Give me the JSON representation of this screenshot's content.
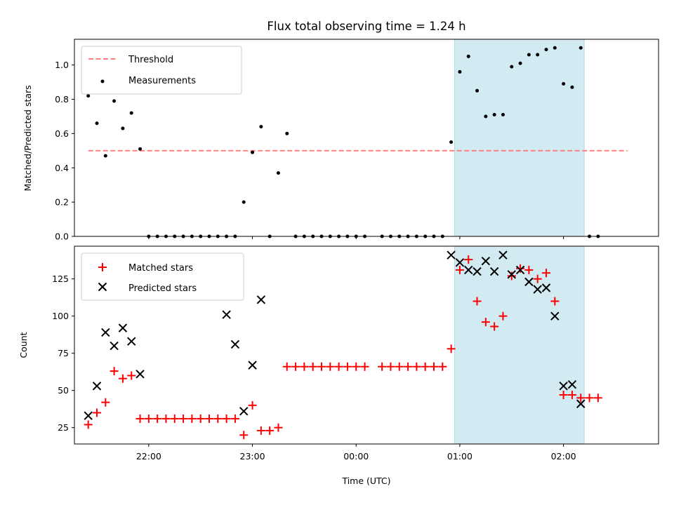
{
  "figure_title": "Flux total observing time = 1.24 h",
  "x_axis_label": "Time (UTC)",
  "x_tick_labels": [
    "22:00",
    "23:00",
    "00:00",
    "01:00",
    "02:00"
  ],
  "chart_data": [
    {
      "type": "scatter",
      "ylabel": "Matched/Predicted stars",
      "ylim": [
        0,
        1.15
      ],
      "xlim": [
        "21:17",
        "02:55"
      ],
      "yticks": [
        "0.0",
        "0.2",
        "0.4",
        "0.6",
        "0.8",
        "1.0"
      ],
      "legend_position": "upper-left",
      "grid": false,
      "highlight_span": {
        "start": "00:57",
        "end": "02:12",
        "color": "#add8e6"
      },
      "threshold": {
        "name": "Threshold",
        "value": 0.5,
        "x_start": "21:25",
        "x_end": "02:37",
        "style": "dashed",
        "color": "#ff8080"
      },
      "series": [
        {
          "name": "Measurements",
          "marker": "dot",
          "color": "#000000",
          "x": [
            "21:25",
            "21:30",
            "21:35",
            "21:40",
            "21:45",
            "21:50",
            "21:55",
            "22:00",
            "22:05",
            "22:10",
            "22:15",
            "22:20",
            "22:25",
            "22:30",
            "22:35",
            "22:40",
            "22:45",
            "22:50",
            "22:55",
            "23:00",
            "23:05",
            "23:10",
            "23:15",
            "23:20",
            "23:25",
            "23:30",
            "23:35",
            "23:40",
            "23:45",
            "23:50",
            "23:55",
            "00:00",
            "00:05",
            "00:15",
            "00:20",
            "00:25",
            "00:30",
            "00:35",
            "00:40",
            "00:45",
            "00:50",
            "00:55",
            "01:00",
            "01:05",
            "01:10",
            "01:15",
            "01:20",
            "01:25",
            "01:30",
            "01:35",
            "01:40",
            "01:45",
            "01:50",
            "01:55",
            "02:00",
            "02:05",
            "02:10",
            "02:15",
            "02:20"
          ],
          "y": [
            0.82,
            0.66,
            0.47,
            0.79,
            0.63,
            0.72,
            0.51,
            0,
            0,
            0,
            0,
            0,
            0,
            0,
            0,
            0,
            0,
            0,
            0.2,
            0.49,
            0.64,
            0,
            0.37,
            0.6,
            0,
            0,
            0,
            0,
            0,
            0,
            0,
            0,
            0,
            0,
            0,
            0,
            0,
            0,
            0,
            0,
            0,
            0.55,
            0.96,
            1.05,
            0.85,
            0.7,
            0.71,
            0.71,
            0.99,
            1.01,
            1.06,
            1.06,
            1.09,
            1.1,
            0.89,
            0.87,
            1.1,
            0,
            0
          ]
        }
      ]
    },
    {
      "type": "scatter",
      "ylabel": "Count",
      "ylim": [
        14,
        147
      ],
      "xlim": [
        "21:17",
        "02:55"
      ],
      "yticks": [
        "25",
        "50",
        "75",
        "100",
        "125"
      ],
      "legend_position": "upper-left",
      "grid": false,
      "highlight_span": {
        "start": "00:57",
        "end": "02:12",
        "color": "#add8e6"
      },
      "series": [
        {
          "name": "Matched stars",
          "marker": "plus",
          "color": "#ff0000",
          "x": [
            "21:25",
            "21:30",
            "21:35",
            "21:40",
            "21:45",
            "21:50",
            "21:55",
            "22:00",
            "22:05",
            "22:10",
            "22:15",
            "22:20",
            "22:25",
            "22:30",
            "22:35",
            "22:40",
            "22:45",
            "22:50",
            "22:55",
            "23:00",
            "23:05",
            "23:10",
            "23:15",
            "23:20",
            "23:25",
            "23:30",
            "23:35",
            "23:40",
            "23:45",
            "23:50",
            "23:55",
            "00:00",
            "00:05",
            "00:15",
            "00:20",
            "00:25",
            "00:30",
            "00:35",
            "00:40",
            "00:45",
            "00:50",
            "00:55",
            "01:00",
            "01:05",
            "01:10",
            "01:15",
            "01:20",
            "01:25",
            "01:30",
            "01:35",
            "01:40",
            "01:45",
            "01:50",
            "01:55",
            "02:00",
            "02:05",
            "02:10",
            "02:15",
            "02:20"
          ],
          "y": [
            27,
            35,
            42,
            63,
            58,
            60,
            31,
            31,
            31,
            31,
            31,
            31,
            31,
            31,
            31,
            31,
            31,
            31,
            20,
            40,
            23,
            23,
            25,
            66,
            66,
            66,
            66,
            66,
            66,
            66,
            66,
            66,
            66,
            66,
            66,
            66,
            66,
            66,
            66,
            66,
            66,
            78,
            131,
            138,
            110,
            96,
            93,
            100,
            127,
            132,
            131,
            125,
            129,
            110,
            47,
            47,
            45,
            45,
            45
          ]
        },
        {
          "name": "Predicted stars",
          "marker": "cross",
          "color": "#000000",
          "x": [
            "21:25",
            "21:30",
            "21:35",
            "21:40",
            "21:45",
            "21:50",
            "21:55",
            "22:45",
            "22:50",
            "22:55",
            "23:00",
            "23:05",
            "00:55",
            "01:00",
            "01:05",
            "01:10",
            "01:15",
            "01:20",
            "01:25",
            "01:30",
            "01:35",
            "01:40",
            "01:45",
            "01:50",
            "01:55",
            "02:00",
            "02:05",
            "02:10"
          ],
          "y": [
            33,
            53,
            89,
            80,
            92,
            83,
            61,
            101,
            81,
            36,
            67,
            111,
            141,
            136,
            131,
            130,
            137,
            130,
            141,
            128,
            131,
            123,
            118,
            119,
            100,
            53,
            54,
            41
          ]
        }
      ]
    }
  ]
}
